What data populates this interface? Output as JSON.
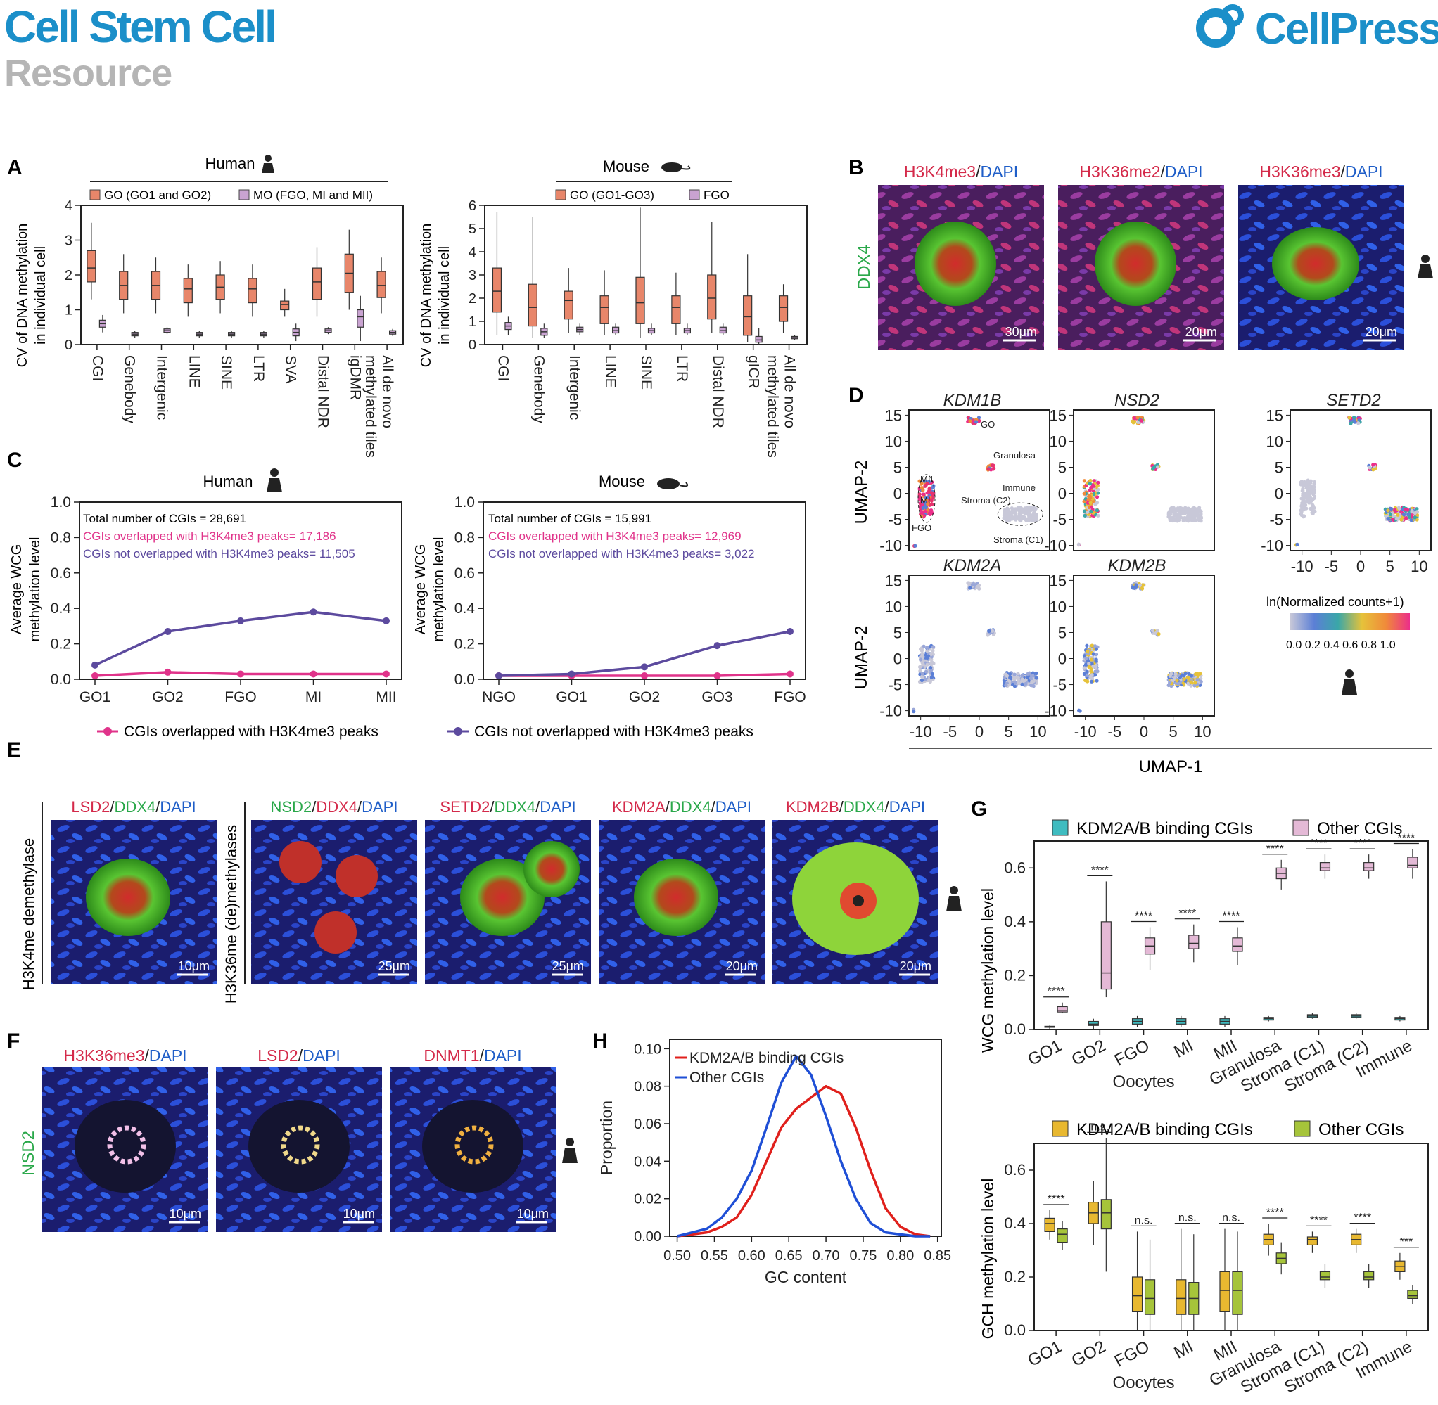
{
  "header": {
    "journal": "Cell Stem Cell",
    "section": "Resource",
    "publisher": "CellPress",
    "journal_color": "#1b8fc9",
    "section_color": "#b5b5b5"
  },
  "panels": {
    "A": "A",
    "B": "B",
    "C": "C",
    "D": "D",
    "E": "E",
    "F": "F",
    "G": "G",
    "H": "H"
  },
  "panel_a": {
    "human_title": "Human",
    "mouse_title": "Mouse",
    "human_legend": [
      "GO (GO1 and GO2)",
      "MO (FGO, MI and MII)"
    ],
    "mouse_legend": [
      "GO (GO1-GO3)",
      "FGO"
    ],
    "ylabel_1": "CV of DNA methylation",
    "ylabel_2": "in individual cell",
    "human_categories": [
      "CGI",
      "Genebody",
      "Intergenic",
      "LINE",
      "SINE",
      "LTR",
      "SVA",
      "Distal NDR",
      "igDMR",
      "All de novo methylated tiles"
    ],
    "mouse_categories": [
      "CGI",
      "Genebody",
      "Intergenic",
      "LINE",
      "SINE",
      "LTR",
      "Distal NDR",
      "gICR",
      "All de novo methylated tiles"
    ],
    "colors": {
      "go": "#e8866a",
      "mo": "#c9a3d1"
    }
  },
  "panel_b": {
    "stains": [
      {
        "mark": "H3K4me3",
        "dapi": "DAPI",
        "scale": "30μm"
      },
      {
        "mark": "H3K36me2",
        "dapi": "DAPI",
        "scale": "20μm"
      },
      {
        "mark": "H3K36me3",
        "dapi": "DAPI",
        "scale": "20μm"
      }
    ],
    "side_label": "DDX4"
  },
  "panel_c": {
    "human_title": "Human",
    "mouse_title": "Mouse",
    "ylabel_1": "Average WCG",
    "ylabel_2": "methylation level",
    "human_notes": [
      "Total number of CGIs = 28,691",
      "CGIs overlapped with H3K4me3 peaks= 17,186",
      "CGIs not overlapped with H3K4me3 peaks= 11,505"
    ],
    "mouse_notes": [
      "Total number of CGIs = 15,991",
      "CGIs overlapped with H3K4me3 peaks= 12,969",
      "CGIs not overlapped with H3K4me3 peaks= 3,022"
    ],
    "legend": [
      "CGIs overlapped with H3K4me3 peaks",
      "CGIs not overlapped with H3K4me3 peaks"
    ]
  },
  "panel_d": {
    "genes": [
      "KDM1B",
      "NSD2",
      "SETD2",
      "KDM2A",
      "KDM2B"
    ],
    "ylabel": "UMAP-2",
    "xlabel": "UMAP-1",
    "clusters": [
      "GO",
      "Granulosa",
      "Immune",
      "MII",
      "MI",
      "Stroma (C2)",
      "Stroma (C1)",
      "FGO"
    ],
    "color_title": "ln(Normalized counts+1)",
    "color_ticks": "0.0 0.2 0.4 0.6 0.8 1.0"
  },
  "panel_e": {
    "row_label_1": "H3K4me demethylase",
    "row_label_2": "H3K36me (de)methylases",
    "images": [
      {
        "a": "LSD2",
        "b": "DDX4",
        "c": "DAPI",
        "scale": "10μm"
      },
      {
        "a": "NSD2",
        "b": "DDX4",
        "c": "DAPI",
        "scale": "25μm"
      },
      {
        "a": "SETD2",
        "b": "DDX4",
        "c": "DAPI",
        "scale": "25μm"
      },
      {
        "a": "KDM2A",
        "b": "DDX4",
        "c": "DAPI",
        "scale": "20μm"
      },
      {
        "a": "KDM2B",
        "b": "DDX4",
        "c": "DAPI",
        "scale": "20μm"
      }
    ]
  },
  "panel_f": {
    "side_label": "NSD2",
    "images": [
      {
        "a": "H3K36me3",
        "c": "DAPI",
        "scale": "10μm"
      },
      {
        "a": "LSD2",
        "c": "DAPI",
        "scale": "10μm"
      },
      {
        "a": "DNMT1",
        "c": "DAPI",
        "scale": "10μm"
      }
    ]
  },
  "panel_g": {
    "top_legend": [
      "KDM2A/B binding CGIs",
      "Other CGIs"
    ],
    "bottom_legend": [
      "KDM2A/B binding CGIs",
      "Other CGIs"
    ],
    "top_ylabel": "WCG methylation level",
    "bottom_ylabel": "GCH methylation level",
    "categories": [
      "GO1",
      "GO2",
      "FGO",
      "MI",
      "MII",
      "Granulosa",
      "Stroma (C1)",
      "Stroma (C2)",
      "Immune"
    ],
    "group_label": "Oocytes",
    "top_sig": [
      "****",
      "****",
      "****",
      "****",
      "****",
      "****",
      "****",
      "****",
      "****"
    ],
    "bottom_sig": [
      "****",
      "n.s.",
      "n.s.",
      "n.s.",
      "n.s.",
      "****",
      "****",
      "****",
      "***"
    ]
  },
  "chart_data": [
    {
      "type": "box",
      "panel": "A-human",
      "categories": [
        "CGI",
        "Genebody",
        "Intergenic",
        "LINE",
        "SINE",
        "LTR",
        "SVA",
        "Distal NDR",
        "igDMR",
        "All de novo methylated tiles"
      ],
      "ylim": [
        0,
        4
      ],
      "series": [
        {
          "name": "GO (GO1 and GO2)",
          "medians": [
            2.2,
            1.7,
            1.7,
            1.6,
            1.65,
            1.6,
            1.15,
            1.8,
            2.05,
            1.7
          ],
          "q1": [
            1.8,
            1.3,
            1.3,
            1.2,
            1.3,
            1.2,
            1.0,
            1.3,
            1.5,
            1.35
          ],
          "q3": [
            2.7,
            2.1,
            2.1,
            1.9,
            2.0,
            1.9,
            1.25,
            2.2,
            2.6,
            2.1
          ],
          "min": [
            1.3,
            0.9,
            0.9,
            0.8,
            0.9,
            0.8,
            0.8,
            0.8,
            1.0,
            0.9
          ],
          "max": [
            3.5,
            2.6,
            2.5,
            2.3,
            2.4,
            2.3,
            1.6,
            2.8,
            3.3,
            2.5
          ]
        },
        {
          "name": "MO (FGO, MI and MII)",
          "medians": [
            0.6,
            0.3,
            0.4,
            0.3,
            0.3,
            0.3,
            0.35,
            0.4,
            0.8,
            0.35
          ],
          "q1": [
            0.5,
            0.25,
            0.35,
            0.25,
            0.25,
            0.25,
            0.25,
            0.35,
            0.5,
            0.3
          ],
          "q3": [
            0.7,
            0.35,
            0.45,
            0.35,
            0.35,
            0.35,
            0.45,
            0.45,
            1.0,
            0.4
          ],
          "min": [
            0.35,
            0.2,
            0.3,
            0.2,
            0.2,
            0.2,
            0.1,
            0.3,
            0.1,
            0.25
          ],
          "max": [
            0.85,
            0.4,
            0.5,
            0.4,
            0.4,
            0.4,
            0.6,
            0.5,
            1.4,
            0.45
          ]
        }
      ],
      "ylabel": "CV of DNA methylation in individual cell"
    },
    {
      "type": "box",
      "panel": "A-mouse",
      "categories": [
        "CGI",
        "Genebody",
        "Intergenic",
        "LINE",
        "SINE",
        "LTR",
        "Distal NDR",
        "gICR",
        "All de novo methylated tiles"
      ],
      "ylim": [
        0,
        6
      ],
      "series": [
        {
          "name": "GO (GO1-GO3)",
          "medians": [
            2.3,
            1.6,
            1.9,
            1.6,
            1.8,
            1.6,
            2.0,
            1.2,
            1.6
          ],
          "q1": [
            1.4,
            0.8,
            1.1,
            0.9,
            0.9,
            0.9,
            1.1,
            0.4,
            1.0
          ],
          "q3": [
            3.3,
            2.6,
            2.3,
            2.1,
            2.9,
            2.1,
            3.0,
            2.1,
            2.1
          ],
          "min": [
            0.4,
            0.3,
            0.5,
            0.4,
            0.3,
            0.4,
            0.5,
            0.1,
            0.5
          ],
          "max": [
            5.7,
            5.5,
            3.3,
            3.2,
            5.9,
            3.1,
            5.3,
            3.9,
            2.6
          ]
        },
        {
          "name": "FGO",
          "medians": [
            0.8,
            0.55,
            0.65,
            0.6,
            0.6,
            0.6,
            0.6,
            0.2,
            0.3
          ],
          "q1": [
            0.65,
            0.4,
            0.55,
            0.5,
            0.5,
            0.5,
            0.5,
            0.1,
            0.25
          ],
          "q3": [
            0.95,
            0.7,
            0.75,
            0.75,
            0.7,
            0.7,
            0.75,
            0.35,
            0.35
          ],
          "min": [
            0.4,
            0.3,
            0.4,
            0.4,
            0.4,
            0.4,
            0.4,
            0.0,
            0.2
          ],
          "max": [
            1.2,
            0.9,
            0.9,
            0.9,
            0.9,
            0.9,
            0.9,
            0.7,
            0.4
          ]
        }
      ]
    },
    {
      "type": "line",
      "panel": "C-human",
      "x": [
        "GO1",
        "GO2",
        "FGO",
        "MI",
        "MII"
      ],
      "ylim": [
        0,
        1.0
      ],
      "series": [
        {
          "name": "CGIs overlapped with H3K4me3 peaks",
          "values": [
            0.02,
            0.04,
            0.03,
            0.03,
            0.03
          ],
          "color": "#e0338a"
        },
        {
          "name": "CGIs not overlapped with H3K4me3 peaks",
          "values": [
            0.08,
            0.27,
            0.33,
            0.38,
            0.33
          ],
          "color": "#5c4a9e"
        }
      ]
    },
    {
      "type": "line",
      "panel": "C-mouse",
      "x": [
        "NGO",
        "GO1",
        "GO2",
        "GO3",
        "FGO"
      ],
      "ylim": [
        0,
        1.0
      ],
      "series": [
        {
          "name": "CGIs overlapped with H3K4me3 peaks",
          "values": [
            0.02,
            0.02,
            0.02,
            0.02,
            0.03
          ],
          "color": "#e0338a"
        },
        {
          "name": "CGIs not overlapped with H3K4me3 peaks",
          "values": [
            0.02,
            0.03,
            0.07,
            0.19,
            0.27
          ],
          "color": "#5c4a9e"
        }
      ]
    },
    {
      "type": "box",
      "panel": "G-top",
      "categories": [
        "GO1",
        "GO2",
        "FGO",
        "MI",
        "MII",
        "Granulosa",
        "Stroma (C1)",
        "Stroma (C2)",
        "Immune"
      ],
      "ylim": [
        0,
        0.7
      ],
      "series": [
        {
          "name": "KDM2A/B binding CGIs",
          "medians": [
            0.01,
            0.02,
            0.03,
            0.03,
            0.03,
            0.04,
            0.05,
            0.05,
            0.04
          ],
          "q1": [
            0.01,
            0.015,
            0.02,
            0.02,
            0.02,
            0.035,
            0.045,
            0.045,
            0.035
          ],
          "q3": [
            0.012,
            0.03,
            0.04,
            0.04,
            0.04,
            0.045,
            0.055,
            0.055,
            0.045
          ],
          "min": [
            0.0,
            0.0,
            0.01,
            0.01,
            0.01,
            0.03,
            0.04,
            0.04,
            0.03
          ],
          "max": [
            0.015,
            0.04,
            0.05,
            0.05,
            0.05,
            0.05,
            0.06,
            0.06,
            0.05
          ]
        },
        {
          "name": "Other CGIs",
          "medians": [
            0.07,
            0.21,
            0.31,
            0.32,
            0.31,
            0.58,
            0.6,
            0.6,
            0.61
          ],
          "q1": [
            0.065,
            0.15,
            0.28,
            0.3,
            0.29,
            0.56,
            0.59,
            0.59,
            0.6
          ],
          "q3": [
            0.085,
            0.4,
            0.34,
            0.35,
            0.34,
            0.6,
            0.62,
            0.62,
            0.64
          ],
          "min": [
            0.06,
            0.12,
            0.22,
            0.25,
            0.24,
            0.52,
            0.56,
            0.56,
            0.56
          ],
          "max": [
            0.1,
            0.55,
            0.38,
            0.39,
            0.38,
            0.63,
            0.65,
            0.65,
            0.67
          ]
        }
      ],
      "ylabel": "WCG methylation level"
    },
    {
      "type": "box",
      "panel": "G-bottom",
      "categories": [
        "GO1",
        "GO2",
        "FGO",
        "MI",
        "MII",
        "Granulosa",
        "Stroma (C1)",
        "Stroma (C2)",
        "Immune"
      ],
      "ylim": [
        0,
        0.7
      ],
      "series": [
        {
          "name": "KDM2A/B binding CGIs",
          "medians": [
            0.4,
            0.44,
            0.13,
            0.12,
            0.15,
            0.34,
            0.34,
            0.34,
            0.24
          ],
          "q1": [
            0.37,
            0.4,
            0.07,
            0.06,
            0.07,
            0.32,
            0.32,
            0.32,
            0.22
          ],
          "q3": [
            0.42,
            0.48,
            0.2,
            0.19,
            0.22,
            0.36,
            0.35,
            0.36,
            0.26
          ],
          "min": [
            0.34,
            0.32,
            0.0,
            0.0,
            0.0,
            0.28,
            0.29,
            0.29,
            0.19
          ],
          "max": [
            0.45,
            0.56,
            0.37,
            0.38,
            0.38,
            0.4,
            0.37,
            0.38,
            0.29
          ]
        },
        {
          "name": "Other CGIs",
          "medians": [
            0.36,
            0.44,
            0.12,
            0.12,
            0.15,
            0.27,
            0.2,
            0.2,
            0.13
          ],
          "q1": [
            0.33,
            0.38,
            0.06,
            0.06,
            0.06,
            0.25,
            0.19,
            0.19,
            0.12
          ],
          "q3": [
            0.38,
            0.49,
            0.19,
            0.18,
            0.22,
            0.29,
            0.22,
            0.22,
            0.15
          ],
          "min": [
            0.3,
            0.22,
            0.0,
            0.0,
            0.0,
            0.21,
            0.16,
            0.16,
            0.1
          ],
          "max": [
            0.41,
            0.72,
            0.34,
            0.36,
            0.37,
            0.33,
            0.25,
            0.25,
            0.17
          ]
        }
      ],
      "ylabel": "GCH methylation level"
    },
    {
      "type": "line",
      "panel": "H",
      "x": [
        0.5,
        0.52,
        0.54,
        0.56,
        0.58,
        0.6,
        0.62,
        0.64,
        0.66,
        0.68,
        0.7,
        0.72,
        0.74,
        0.76,
        0.78,
        0.8,
        0.82,
        0.84
      ],
      "xlabel": "GC content",
      "ylabel": "Proportion",
      "ylim": [
        0,
        0.105
      ],
      "series": [
        {
          "name": "KDM2A/B binding CGIs",
          "color": "#e0201c",
          "values": [
            0.0,
            0.001,
            0.002,
            0.005,
            0.01,
            0.022,
            0.04,
            0.058,
            0.068,
            0.074,
            0.08,
            0.076,
            0.058,
            0.035,
            0.015,
            0.005,
            0.001,
            0.0
          ]
        },
        {
          "name": "Other CGIs",
          "color": "#1f4fd6",
          "values": [
            0.0,
            0.002,
            0.004,
            0.01,
            0.02,
            0.035,
            0.058,
            0.082,
            0.096,
            0.086,
            0.064,
            0.04,
            0.02,
            0.007,
            0.002,
            0.001,
            0.0,
            0.0
          ]
        }
      ]
    }
  ]
}
